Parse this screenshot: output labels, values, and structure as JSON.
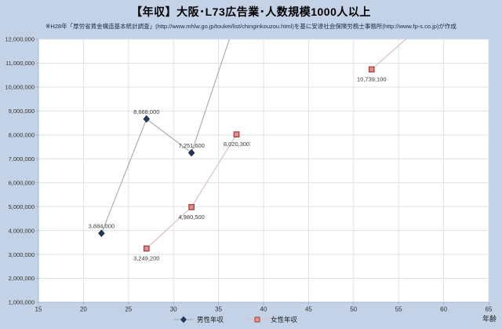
{
  "page": {
    "background": "#c3d2e6"
  },
  "chart_data": {
    "type": "line",
    "title": "【年収】大阪･L73広告業･人数規模1000人以上",
    "subtitle": "※H28年「厚労省賃金構造基本統計調査」(http://www.mhlw.go.jp/toukei/list/chinginkouzou.html)を基に安達社会保険労務士事務所(http://www.fp-s.co.jp)が作成",
    "xlabel": "年齢",
    "xlim": [
      15,
      65
    ],
    "ylim": [
      1000000,
      12000000
    ],
    "x_ticks": [
      "15",
      "20",
      "25",
      "30",
      "35",
      "40",
      "45",
      "50",
      "55",
      "60",
      "65"
    ],
    "y_ticks": [
      "1,000,000",
      "2,000,000",
      "3,000,000",
      "4,000,000",
      "5,000,000",
      "6,000,000",
      "7,000,000",
      "8,000,000",
      "9,000,000",
      "10,000,000",
      "11,000,000",
      "12,000,000"
    ],
    "grid": true,
    "legend_position": "bottom",
    "plot_bg": "#ffffff",
    "grid_color": "#dde1e6",
    "axis_color": "#a6b4cb",
    "series": [
      {
        "name": "男性年収",
        "marker": "diamond",
        "line_color": "#abafb5",
        "marker_color": "#24395e",
        "marker_border": "#1c2c49",
        "points": [
          {
            "age": 22,
            "value": 3884000,
            "label": "3,884,000",
            "label_pos": "above"
          },
          {
            "age": 27,
            "value": 8668000,
            "label": "8,668,000",
            "label_pos": "above"
          },
          {
            "age": 32,
            "value": 7251600,
            "label": "7,251,600",
            "label_pos": "above"
          },
          {
            "age": 37,
            "value": 12900000,
            "label": "",
            "offchart": true,
            "estimated": true
          }
        ]
      },
      {
        "name": "女性年収",
        "marker": "square",
        "line_color": "#dcc0c2",
        "marker_color": "#e0908f",
        "marker_border": "#a23f3c",
        "points": [
          {
            "age": 27,
            "value": 3249200,
            "label": "3,249,200",
            "label_pos": "below"
          },
          {
            "age": 32,
            "value": 4980500,
            "label": "4,980,500",
            "label_pos": "below"
          },
          {
            "age": 37,
            "value": 8020300,
            "label": "8,020,300",
            "label_pos": "below"
          },
          {
            "age": 52,
            "value": 10739100,
            "label": "10,739,100",
            "label_pos": "below",
            "gap_before": true
          },
          {
            "age": 57,
            "value": 12400000,
            "label": "",
            "offchart": true,
            "estimated": true
          }
        ]
      }
    ]
  }
}
